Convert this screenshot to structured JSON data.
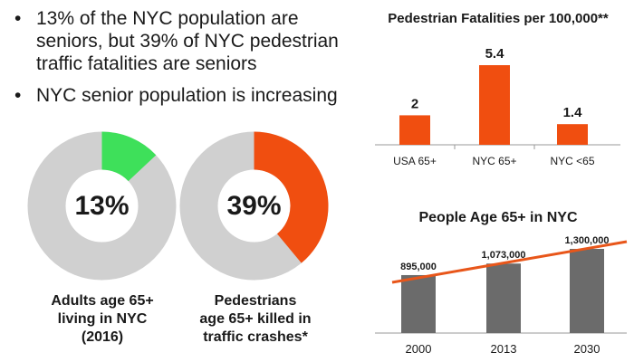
{
  "bullets": [
    "13% of the NYC population are seniors, but 39% of NYC pedestrian traffic fatalities are seniors",
    "NYC senior population is increasing"
  ],
  "donuts": [
    {
      "value_percent": "13%",
      "caption_lines": [
        "Adults age 65+",
        "living in NYC",
        "(2016)"
      ],
      "color": "#3ee05a"
    },
    {
      "value_percent": "39%",
      "caption_lines": [
        "Pedestrians",
        "age 65+ killed in",
        "traffic crashes*"
      ],
      "color": "#f04e10"
    }
  ],
  "colors": {
    "ring_bg": "#d0d0d0",
    "accent": "#f04e10",
    "bar_gray": "#6b6b6b",
    "trend": "#e8561a"
  },
  "chart_data": [
    {
      "type": "pie",
      "style": "donut",
      "slices": [
        {
          "label": "Adults age 65+ living in NYC (2016)",
          "value": 13
        },
        {
          "label": "",
          "value": 87
        }
      ],
      "center_label": "13%"
    },
    {
      "type": "pie",
      "style": "donut",
      "slices": [
        {
          "label": "Pedestrians age 65+ killed in traffic crashes*",
          "value": 39
        },
        {
          "label": "",
          "value": 61
        }
      ],
      "center_label": "39%"
    },
    {
      "type": "bar",
      "title": "Pedestrian Fatalities per 100,000**",
      "categories": [
        "USA 65+",
        "NYC 65+",
        "NYC <65"
      ],
      "values": [
        2,
        5.4,
        1.4
      ],
      "data_labels": [
        "2",
        "5.4",
        "1.4"
      ],
      "ylim": [
        0,
        6
      ]
    },
    {
      "type": "bar",
      "title": "People Age 65+ in NYC",
      "categories": [
        "2000",
        "2013",
        "2030"
      ],
      "values": [
        895000,
        1073000,
        1300000
      ],
      "data_labels": [
        "895,000",
        "1,073,000",
        "1,300,000"
      ],
      "trendline": true,
      "ylim": [
        0,
        1350000
      ]
    }
  ]
}
